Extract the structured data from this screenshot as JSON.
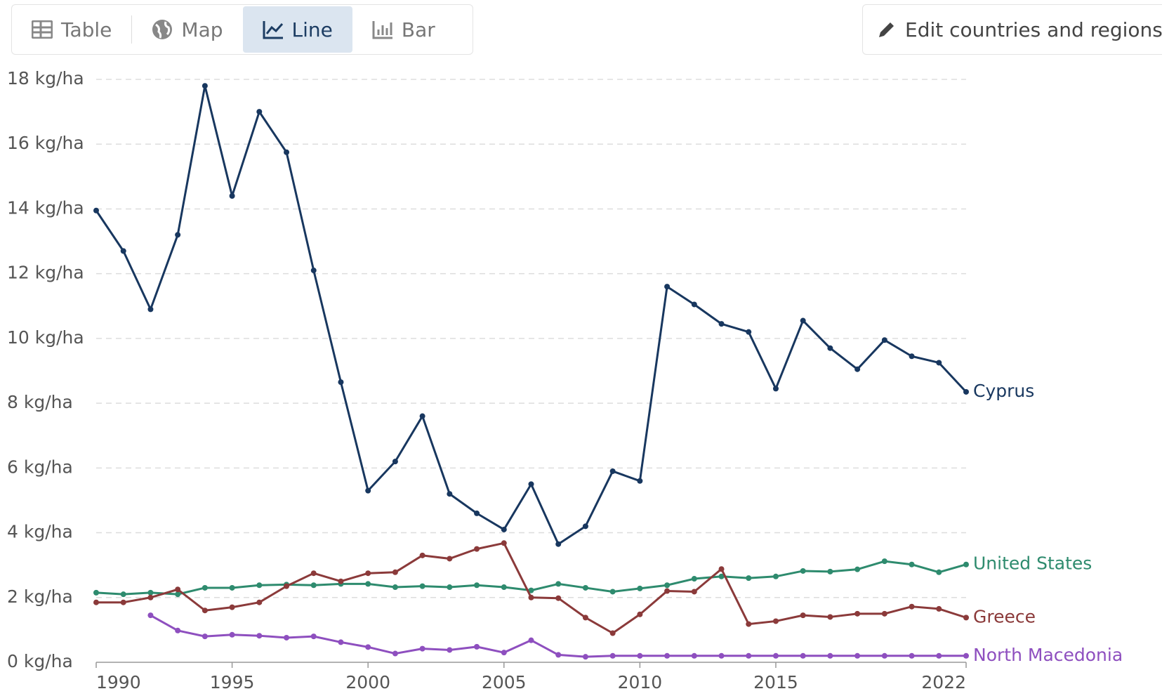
{
  "ui": {
    "tabs": [
      "Table",
      "Map",
      "Line",
      "Bar"
    ],
    "active_tab": "Line",
    "edit_button": "Edit countries and regions"
  },
  "chart_data": {
    "type": "line",
    "x": [
      1990,
      1991,
      1992,
      1993,
      1994,
      1995,
      1996,
      1997,
      1998,
      1999,
      2000,
      2001,
      2002,
      2003,
      2004,
      2005,
      2006,
      2007,
      2008,
      2009,
      2010,
      2011,
      2012,
      2013,
      2014,
      2015,
      2016,
      2017,
      2018,
      2019,
      2020,
      2021,
      2022
    ],
    "series": [
      {
        "name": "Cyprus",
        "color": "#18375f",
        "values": [
          13.95,
          12.7,
          10.9,
          13.2,
          17.8,
          14.4,
          17.0,
          15.75,
          12.1,
          8.65,
          5.3,
          6.2,
          7.6,
          5.2,
          4.6,
          4.1,
          5.5,
          3.65,
          4.2,
          5.9,
          5.6,
          11.6,
          11.05,
          10.45,
          10.2,
          8.45,
          10.55,
          9.7,
          9.05,
          9.95,
          9.45,
          9.25,
          8.35
        ]
      },
      {
        "name": "United States",
        "color": "#2e8b6e",
        "values": [
          2.15,
          2.1,
          2.15,
          2.1,
          2.3,
          2.3,
          2.38,
          2.4,
          2.38,
          2.42,
          2.42,
          2.32,
          2.35,
          2.32,
          2.38,
          2.32,
          2.22,
          2.42,
          2.3,
          2.18,
          2.28,
          2.38,
          2.58,
          2.65,
          2.6,
          2.65,
          2.82,
          2.8,
          2.87,
          3.12,
          3.02,
          2.78,
          3.02
        ]
      },
      {
        "name": "Greece",
        "color": "#8b3a3a",
        "values": [
          1.85,
          1.85,
          2.0,
          2.25,
          1.6,
          1.7,
          1.85,
          2.35,
          2.75,
          2.5,
          2.75,
          2.78,
          3.3,
          3.2,
          3.5,
          3.68,
          2.0,
          1.98,
          1.38,
          0.9,
          1.48,
          2.2,
          2.18,
          2.88,
          1.18,
          1.27,
          1.45,
          1.4,
          1.5,
          1.5,
          1.72,
          1.65,
          1.38
        ]
      },
      {
        "name": "North Macedonia",
        "color": "#8e4fbf",
        "values": [
          null,
          null,
          1.45,
          0.98,
          0.8,
          0.85,
          0.82,
          0.76,
          0.8,
          0.62,
          0.47,
          0.27,
          0.42,
          0.38,
          0.48,
          0.3,
          0.68,
          0.23,
          0.17,
          0.2,
          0.2,
          0.2,
          0.2,
          0.2,
          0.2,
          0.2,
          0.2,
          0.2,
          0.2,
          0.2,
          0.2,
          0.2,
          0.2
        ]
      }
    ],
    "xlim": [
      1990,
      2022
    ],
    "xticks": [
      1990,
      1995,
      2000,
      2005,
      2010,
      2015,
      2022
    ],
    "ylim": [
      0,
      18
    ],
    "yticks": [
      {
        "value": 0,
        "label": "0 kg/ha"
      },
      {
        "value": 2,
        "label": "2 kg/ha"
      },
      {
        "value": 4,
        "label": "4 kg/ha"
      },
      {
        "value": 6,
        "label": "6 kg/ha"
      },
      {
        "value": 8,
        "label": "8 kg/ha"
      },
      {
        "value": 10,
        "label": "10 kg/ha"
      },
      {
        "value": 12,
        "label": "12 kg/ha"
      },
      {
        "value": 14,
        "label": "14 kg/ha"
      },
      {
        "value": 16,
        "label": "16 kg/ha"
      },
      {
        "value": 18,
        "label": "18 kg/ha"
      }
    ],
    "grid": true
  }
}
